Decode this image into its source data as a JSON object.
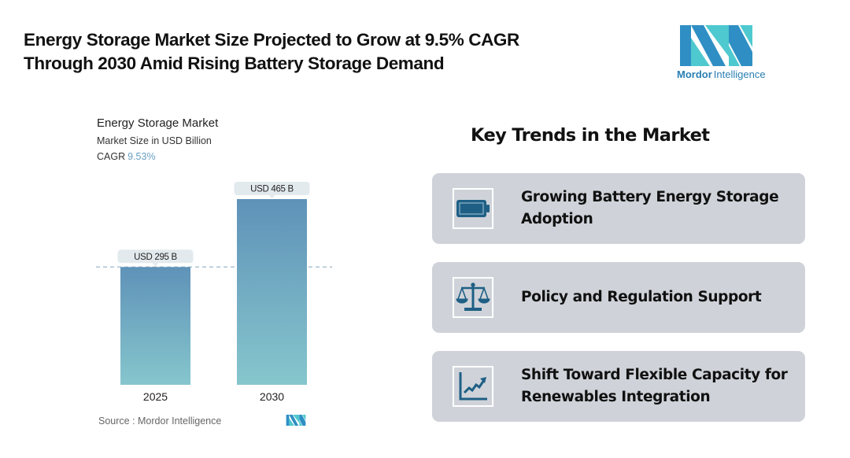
{
  "header": {
    "title_line1": "Energy Storage Market Size Projected to Grow at 9.5% CAGR",
    "title_line2": "Through 2030 Amid Rising Battery Storage Demand"
  },
  "brand": {
    "name_bold": "Mordor",
    "name_light": "Intelligence",
    "logo_icon": "mordor-intelligence-logo",
    "colors": {
      "dark": "#2f8fc4",
      "light": "#4ec9cf"
    }
  },
  "chart": {
    "title": "Energy Storage Market",
    "subtitle": "Market Size in USD Billion",
    "cagr_label": "CAGR",
    "cagr_value": "9.53%",
    "source": "Source :  Mordor Intelligence"
  },
  "chart_data": {
    "type": "bar",
    "title": "Energy Storage Market",
    "subtitle": "Market Size in USD Billion",
    "categories": [
      "2025",
      "2030"
    ],
    "values": [
      295,
      465
    ],
    "data_labels": [
      "USD 295 B",
      "USD 465 B"
    ],
    "xlabel": "",
    "ylabel": "Market Size in USD Billion",
    "ylim": [
      0,
      465
    ],
    "grid": false,
    "reference_line": {
      "value": 295,
      "style": "dashed"
    },
    "annotation": "CAGR 9.53%",
    "colors": {
      "bar_top": "#5f92b8",
      "bar_bottom": "#86c6cd",
      "label_bg": "#e3eaee",
      "ref_line": "#9fb6c8"
    }
  },
  "trends": {
    "title": "Key Trends in the Market",
    "items": [
      {
        "label": "Growing Battery Energy Storage Adoption",
        "icon": "battery-icon"
      },
      {
        "label": "Policy and Regulation Support",
        "icon": "scales-icon"
      },
      {
        "label": "Shift Toward Flexible Capacity for Renewables Integration",
        "icon": "trend-chart-icon"
      }
    ],
    "colors": {
      "card_bg": "#cfd3d9",
      "icon": "#1f5f85"
    }
  }
}
